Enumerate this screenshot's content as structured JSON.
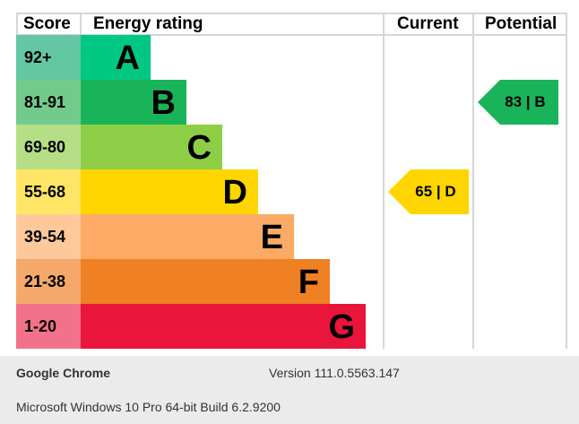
{
  "headers": {
    "score": "Score",
    "rating": "Energy rating",
    "current": "Current",
    "potential": "Potential"
  },
  "bands": [
    {
      "score": "92+",
      "letter": "A",
      "color": "#00c781",
      "score_color": "#63c7a3"
    },
    {
      "score": "81-91",
      "letter": "B",
      "color": "#19b459",
      "score_color": "#73cb8b"
    },
    {
      "score": "69-80",
      "letter": "C",
      "color": "#8dce46",
      "score_color": "#b5de87"
    },
    {
      "score": "55-68",
      "letter": "D",
      "color": "#ffd500",
      "score_color": "#ffe566"
    },
    {
      "score": "39-54",
      "letter": "E",
      "color": "#fcaa65",
      "score_color": "#fdc99b"
    },
    {
      "score": "21-38",
      "letter": "F",
      "color": "#ef8023",
      "score_color": "#f4a96a"
    },
    {
      "score": "1-20",
      "letter": "G",
      "color": "#e9153b",
      "score_color": "#f27389"
    }
  ],
  "current": {
    "label": "65 | D",
    "color": "#ffd500"
  },
  "potential": {
    "label": "83 | B",
    "color": "#19b459"
  },
  "footer": {
    "browser": "Google Chrome",
    "version": "Version 111.0.5563.147",
    "os": "Microsoft Windows 10 Pro 64-bit Build 6.2.9200"
  }
}
